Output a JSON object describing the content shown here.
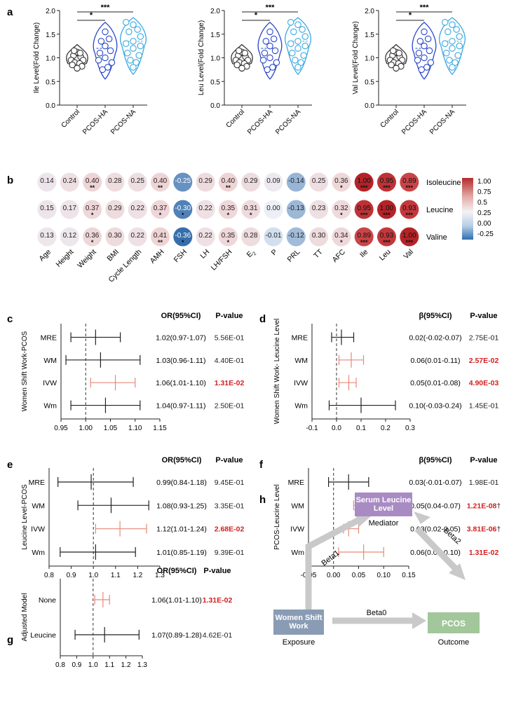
{
  "colors": {
    "control": "#333333",
    "ha": "#2846c8",
    "na": "#38a8e0",
    "red_text": "#d42020",
    "red_ci": "#e88878",
    "black": "#222222",
    "box_purple": "#a98bc4",
    "box_slate": "#8a9cb4",
    "box_green": "#a2c79a",
    "arrow": "#c9c9c9"
  },
  "panel_a": {
    "letter": "a",
    "plots": [
      {
        "ylabel": "Ile Level(Fold Change)",
        "yticks": [
          "0.0",
          "0.5",
          "1.0",
          "1.5",
          "2.0"
        ],
        "ymax": 2.0
      },
      {
        "ylabel": "Leu Level(Fold Change)",
        "yticks": [
          "0.0",
          "0.5",
          "1.0",
          "1.5",
          "2.0"
        ],
        "ymax": 2.0
      },
      {
        "ylabel": "Val Level(Fold Change)",
        "yticks": [
          "0.0",
          "0.5",
          "1.0",
          "1.5",
          "2.0"
        ],
        "ymax": 2.0
      }
    ],
    "groups": [
      "Control",
      "PCOS-HA",
      "PCOS-NA"
    ],
    "sig1": "*",
    "sig2": "***"
  },
  "panel_b": {
    "letter": "b",
    "rows": [
      "Isoleucine",
      "Leucine",
      "Valine"
    ],
    "cols": [
      "Age",
      "Height",
      "Weight",
      "BMI",
      "Cycle Length",
      "AMH",
      "FSH",
      "LH",
      "LH/FSH",
      "E2",
      "P",
      "PRL",
      "TT",
      "AFC",
      "Ile",
      "Leu",
      "Val"
    ],
    "values": [
      [
        "0.14",
        "0.24",
        "0.40",
        "0.28",
        "0.25",
        "0.40",
        "-0.25",
        "0.29",
        "0.40",
        "0.29",
        "0.09",
        "-0.14",
        "0.25",
        "0.36",
        "1.00",
        "0.95",
        "0.89"
      ],
      [
        "0.15",
        "0.17",
        "0.37",
        "0.29",
        "0.22",
        "0.37",
        "-0.30",
        "0.22",
        "0.35",
        "0.31",
        "0.00",
        "-0.13",
        "0.23",
        "0.32",
        "0.95",
        "1.00",
        "0.93"
      ],
      [
        "0.13",
        "0.12",
        "0.36",
        "0.30",
        "0.22",
        "0.41",
        "-0.36",
        "0.22",
        "0.35",
        "0.28",
        "-0.01",
        "-0.12",
        "0.30",
        "0.34",
        "0.89",
        "0.93",
        "1.00"
      ]
    ],
    "stars": [
      [
        "",
        "",
        "**",
        "",
        "",
        "**",
        "",
        "",
        "**",
        "",
        "",
        "",
        "",
        "*",
        "***",
        "***",
        "***"
      ],
      [
        "",
        "",
        "*",
        "",
        "",
        "*",
        "*",
        "",
        "*",
        "*",
        "",
        "",
        "",
        "*",
        "***",
        "***",
        "***"
      ],
      [
        "",
        "",
        "*",
        "",
        "",
        "**",
        "*",
        "",
        "*",
        "",
        "",
        "",
        "",
        "*",
        "***",
        "***",
        "***"
      ]
    ],
    "legend_ticks": [
      "1.00",
      "0.75",
      "0.5",
      "0.25",
      "0.00",
      "-0.25"
    ]
  },
  "forest_c": {
    "letter": "c",
    "ylabel": "Women Shift Work-PCOS",
    "head_est": "OR(95%CI)",
    "head_p": "P-value",
    "rows": [
      {
        "label": "MRE",
        "est": "1.02(0.97-1.07)",
        "p": "5.56E-01",
        "v": 1.02,
        "lo": 0.97,
        "hi": 1.07,
        "sig": false
      },
      {
        "label": "WM",
        "est": "1.03(0.96-1.11)",
        "p": "4.40E-01",
        "v": 1.03,
        "lo": 0.96,
        "hi": 1.11,
        "sig": false
      },
      {
        "label": "IVW",
        "est": "1.06(1.01-1.10)",
        "p": "1.31E-02",
        "v": 1.06,
        "lo": 1.01,
        "hi": 1.1,
        "sig": true
      },
      {
        "label": "Wm",
        "est": "1.04(0.97-1.11)",
        "p": "2.50E-01",
        "v": 1.04,
        "lo": 0.97,
        "hi": 1.11,
        "sig": false
      }
    ],
    "xticks": [
      0.95,
      1.0,
      1.05,
      1.1,
      1.15
    ],
    "xtick_labels": [
      "0.95",
      "1.00",
      "1.05",
      "1.10",
      "1.15"
    ],
    "ref": 1.0
  },
  "forest_d": {
    "letter": "d",
    "ylabel": "Women Shift Work- Leucine Level",
    "head_est": "β(95%CI)",
    "head_p": "P-value",
    "rows": [
      {
        "label": "MRE",
        "est": "0.02(-0.02-0.07)",
        "p": "2.75E-01",
        "v": 0.02,
        "lo": -0.02,
        "hi": 0.07,
        "sig": false
      },
      {
        "label": "WM",
        "est": "0.06(0.01-0.11)",
        "p": "2.57E-02",
        "v": 0.06,
        "lo": 0.01,
        "hi": 0.11,
        "sig": true
      },
      {
        "label": "IVW",
        "est": "0.05(0.01-0.08)",
        "p": "4.90E-03",
        "v": 0.05,
        "lo": 0.01,
        "hi": 0.08,
        "sig": true
      },
      {
        "label": "Wm",
        "est": "0.10(-0.03-0.24)",
        "p": "1.45E-01",
        "v": 0.1,
        "lo": -0.03,
        "hi": 0.24,
        "sig": false
      }
    ],
    "xticks": [
      -0.1,
      0.0,
      0.1,
      0.2,
      0.3
    ],
    "xtick_labels": [
      "-0.1",
      "0.0",
      "0.1",
      "0.2",
      "0.3"
    ],
    "ref": 0.0
  },
  "forest_e": {
    "letter": "e",
    "ylabel": "Leucine Level-PCOS",
    "head_est": "OR(95%CI)",
    "head_p": "P-value",
    "rows": [
      {
        "label": "MRE",
        "est": "0.99(0.84-1.18)",
        "p": "9.45E-01",
        "v": 0.99,
        "lo": 0.84,
        "hi": 1.18,
        "sig": false
      },
      {
        "label": "WM",
        "est": "1.08(0.93-1.25)",
        "p": "3.35E-01",
        "v": 1.08,
        "lo": 0.93,
        "hi": 1.25,
        "sig": false
      },
      {
        "label": "IVW",
        "est": "1.12(1.01-1.24)",
        "p": "2.68E-02",
        "v": 1.12,
        "lo": 1.01,
        "hi": 1.24,
        "sig": true
      },
      {
        "label": "Wm",
        "est": "1.01(0.85-1.19)",
        "p": "9.39E-01",
        "v": 1.01,
        "lo": 0.85,
        "hi": 1.19,
        "sig": false
      }
    ],
    "xticks": [
      0.8,
      0.9,
      1.0,
      1.1,
      1.2,
      1.3
    ],
    "xtick_labels": [
      "0.8",
      "0.9",
      "1.0",
      "1.1",
      "1.2",
      "1.3"
    ],
    "ref": 1.0
  },
  "forest_f": {
    "letter": "f",
    "ylabel": "PCOS-Leucine Level",
    "head_est": "β(95%CI)",
    "head_p": "P-value",
    "rows": [
      {
        "label": "MRE",
        "est": "0.03(-0.01-0.07)",
        "p": "1.98E-01",
        "v": 0.03,
        "lo": -0.01,
        "hi": 0.07,
        "sig": false
      },
      {
        "label": "WM",
        "est": "0.05(0.04-0.07)",
        "p": "1.21E-08",
        "dagger": "†",
        "v": 0.05,
        "lo": 0.04,
        "hi": 0.07,
        "sig": true
      },
      {
        "label": "IVW",
        "est": "0.03(0.02-0.05)",
        "p": "3.81E-06",
        "dagger": "†",
        "v": 0.03,
        "lo": 0.02,
        "hi": 0.05,
        "sig": true
      },
      {
        "label": "Wm",
        "est": "0.06(0.01-0.10)",
        "p": "1.31E-02",
        "v": 0.06,
        "lo": 0.01,
        "hi": 0.1,
        "sig": true
      }
    ],
    "xticks": [
      -0.05,
      0.0,
      0.05,
      0.1,
      0.15
    ],
    "xtick_labels": [
      "-0.05",
      "0.00",
      "0.05",
      "0.10",
      "0.15"
    ],
    "ref": 0.0
  },
  "forest_g": {
    "letter": "g",
    "ylabel": "Adjusted Model",
    "head_est": "OR(95%CI)",
    "head_p": "P-value",
    "rows": [
      {
        "label": "None",
        "est": "1.06(1.01-1.10)",
        "p": "1.31E-02",
        "v": 1.06,
        "lo": 1.01,
        "hi": 1.1,
        "sig": true
      },
      {
        "label": "Leucine",
        "est": "1.07(0.89-1.28)",
        "p": "4.62E-01",
        "v": 1.07,
        "lo": 0.89,
        "hi": 1.28,
        "sig": false
      }
    ],
    "xticks": [
      0.8,
      0.9,
      1.0,
      1.1,
      1.2,
      1.3
    ],
    "xtick_labels": [
      "0.8",
      "0.9",
      "1.0",
      "1.1",
      "1.2",
      "1.3"
    ],
    "ref": 1.0
  },
  "panel_h": {
    "letter": "h",
    "mediator_box": "Serum Leucine Level",
    "mediator_label": "Mediator",
    "exposure_box": "Women Shift Work",
    "exposure_label": "Exposure",
    "outcome_box": "PCOS",
    "outcome_label": "Outcome",
    "beta1": "Beta1",
    "beta2": "Beta2",
    "beta0": "Beta0"
  }
}
